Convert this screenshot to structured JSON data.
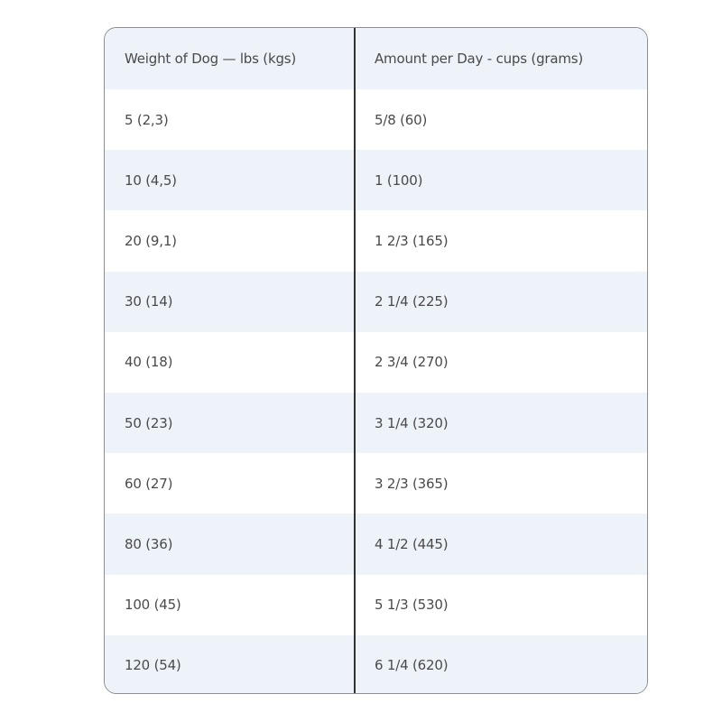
{
  "table": {
    "headers": [
      "Weight of Dog — lbs (kgs)",
      "Amount per Day - cups (grams)"
    ],
    "rows": [
      [
        "5 (2,3)",
        "5/8 (60)"
      ],
      [
        "10 (4,5)",
        "1 (100)"
      ],
      [
        "20 (9,1)",
        "1 2/3 (165)"
      ],
      [
        "30 (14)",
        "2 1/4 (225)"
      ],
      [
        "40 (18)",
        "2 3/4 (270)"
      ],
      [
        "50 (23)",
        "3 1/4 (320)"
      ],
      [
        "60 (27)",
        "3 2/3 (365)"
      ],
      [
        "80 (36)",
        "4 1/2 (445)"
      ],
      [
        "100 (45)",
        "5 1/3 (530)"
      ],
      [
        "120 (54)",
        "6 1/4 (620)"
      ]
    ]
  },
  "colors": {
    "stripe": "#eef2f9",
    "border": "#8a8d93",
    "divider": "#333333",
    "text": "#4a4a4a"
  }
}
